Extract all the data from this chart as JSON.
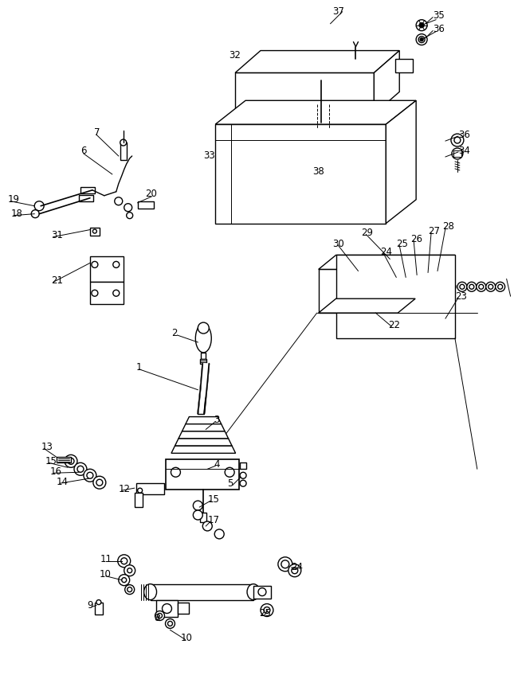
{
  "bg_color": "#ffffff",
  "line_color": "#000000",
  "fig_width": 6.45,
  "fig_height": 8.48,
  "dpi": 100,
  "lw": 1.0,
  "thin": 0.7,
  "label_fs": 8.5
}
